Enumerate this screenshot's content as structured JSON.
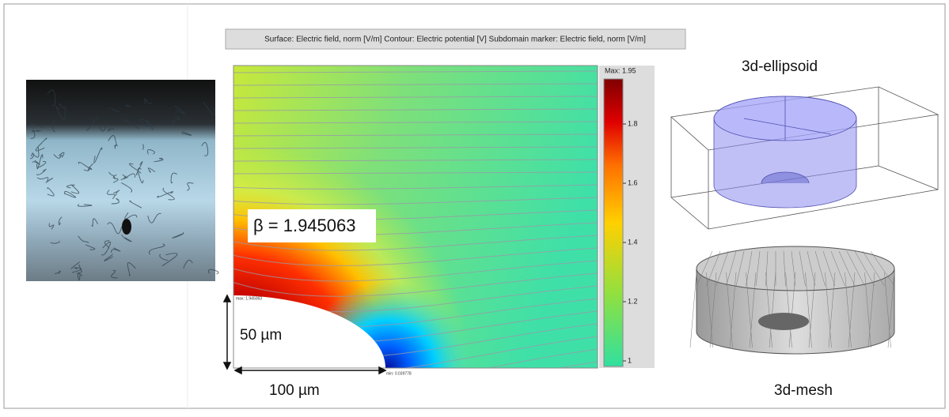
{
  "header": {
    "title": "Surface: Electric field, norm [V/m]  Contour: Electric potential [V]  Subdomain marker: Electric field, norm [V/m]"
  },
  "field_plot": {
    "colorbar_max": "Max: 1.95",
    "colorbar_ticks": [
      "1.8",
      "1.6",
      "1.4",
      "1.2",
      "1"
    ],
    "beta_label": "β = 1.945063",
    "max_marker": "max: 1.945063",
    "min_marker": "min: 0.039778"
  },
  "dimensions": {
    "height": "50 µm",
    "width": "100 µm"
  },
  "panels": {
    "ellipsoid_title": "3d-ellipsoid",
    "mesh_title": "3d-mesh"
  }
}
